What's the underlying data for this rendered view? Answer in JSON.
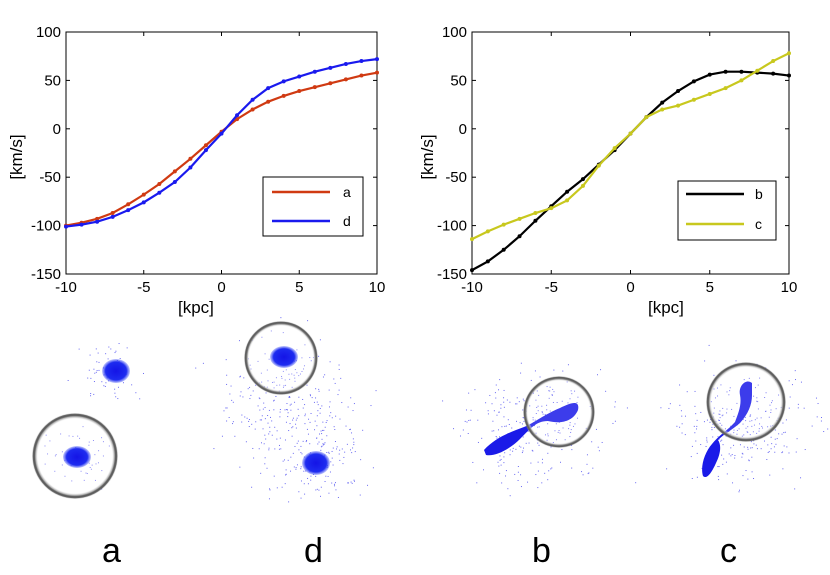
{
  "charts": [
    {
      "type": "line",
      "xlabel": "[kpc]",
      "ylabel": "[km/s]",
      "xlim": [
        -10,
        10
      ],
      "ylim": [
        -150,
        100
      ],
      "xticks": [
        -10,
        -5,
        0,
        5,
        10
      ],
      "yticks": [
        -150,
        -100,
        -50,
        0,
        50,
        100
      ],
      "legend_position": "lower-right",
      "series": [
        {
          "name": "a",
          "color": "#d03a12",
          "x": [
            -10,
            -9,
            -8,
            -7,
            -6,
            -5,
            -4,
            -3,
            -2,
            -1,
            0,
            1,
            2,
            3,
            4,
            5,
            6,
            7,
            8,
            9,
            10
          ],
          "y": [
            -100,
            -97,
            -93,
            -87,
            -78,
            -68,
            -57,
            -44,
            -31,
            -17,
            -3,
            10,
            20,
            28,
            34,
            39,
            43,
            47,
            51,
            55,
            58
          ]
        },
        {
          "name": "d",
          "color": "#1a1aee",
          "x": [
            -10,
            -9,
            -8,
            -7,
            -6,
            -5,
            -4,
            -3,
            -2,
            -1,
            0,
            1,
            2,
            3,
            4,
            5,
            6,
            7,
            8,
            9,
            10
          ],
          "y": [
            -101,
            -99,
            -96,
            -91,
            -84,
            -76,
            -66,
            -55,
            -40,
            -22,
            -5,
            14,
            30,
            42,
            49,
            54,
            59,
            63,
            67,
            70,
            72
          ]
        }
      ]
    },
    {
      "type": "line",
      "xlabel": "[kpc]",
      "ylabel": "[km/s]",
      "xlim": [
        -10,
        10
      ],
      "ylim": [
        -150,
        100
      ],
      "xticks": [
        -10,
        -5,
        0,
        5,
        10
      ],
      "yticks": [
        -150,
        -100,
        -50,
        0,
        50,
        100
      ],
      "legend_position": "lower-right",
      "series": [
        {
          "name": "b",
          "color": "#000000",
          "x": [
            -10,
            -9,
            -8,
            -7,
            -6,
            -5,
            -4,
            -3,
            -2,
            -1,
            0,
            1,
            2,
            3,
            4,
            5,
            6,
            7,
            8,
            9,
            10
          ],
          "y": [
            -146,
            -137,
            -125,
            -111,
            -95,
            -80,
            -65,
            -52,
            -37,
            -22,
            -5,
            12,
            27,
            39,
            49,
            56,
            59,
            59,
            58,
            57,
            55
          ]
        },
        {
          "name": "c",
          "color": "#c8c81e",
          "x": [
            -10,
            -9,
            -8,
            -7,
            -6,
            -5,
            -4,
            -3,
            -2,
            -1,
            0,
            1,
            2,
            3,
            4,
            5,
            6,
            7,
            8,
            9,
            10
          ],
          "y": [
            -114,
            -106,
            -99,
            -93,
            -87,
            -82,
            -74,
            -59,
            -38,
            -20,
            -5,
            12,
            20,
            24,
            30,
            36,
            42,
            50,
            60,
            70,
            78
          ]
        }
      ]
    }
  ],
  "chart_data": [
    {
      "type": "line",
      "xlabel": "[kpc]",
      "ylabel": "[km/s]",
      "xlim": [
        -10,
        10
      ],
      "ylim": [
        -150,
        100
      ],
      "series": [
        {
          "name": "a"
        },
        {
          "name": "d"
        }
      ]
    },
    {
      "type": "line",
      "xlabel": "[kpc]",
      "ylabel": "[km/s]",
      "xlim": [
        -10,
        10
      ],
      "ylim": [
        -150,
        100
      ],
      "series": [
        {
          "name": "b"
        },
        {
          "name": "c"
        }
      ]
    }
  ],
  "panels": [
    {
      "label": "a",
      "blob_color": "#1f2fe8"
    },
    {
      "label": "d",
      "blob_color": "#1f2fe8"
    },
    {
      "label": "b",
      "blob_color": "#1f2fe8"
    },
    {
      "label": "c",
      "blob_color": "#1f2fe8"
    }
  ]
}
